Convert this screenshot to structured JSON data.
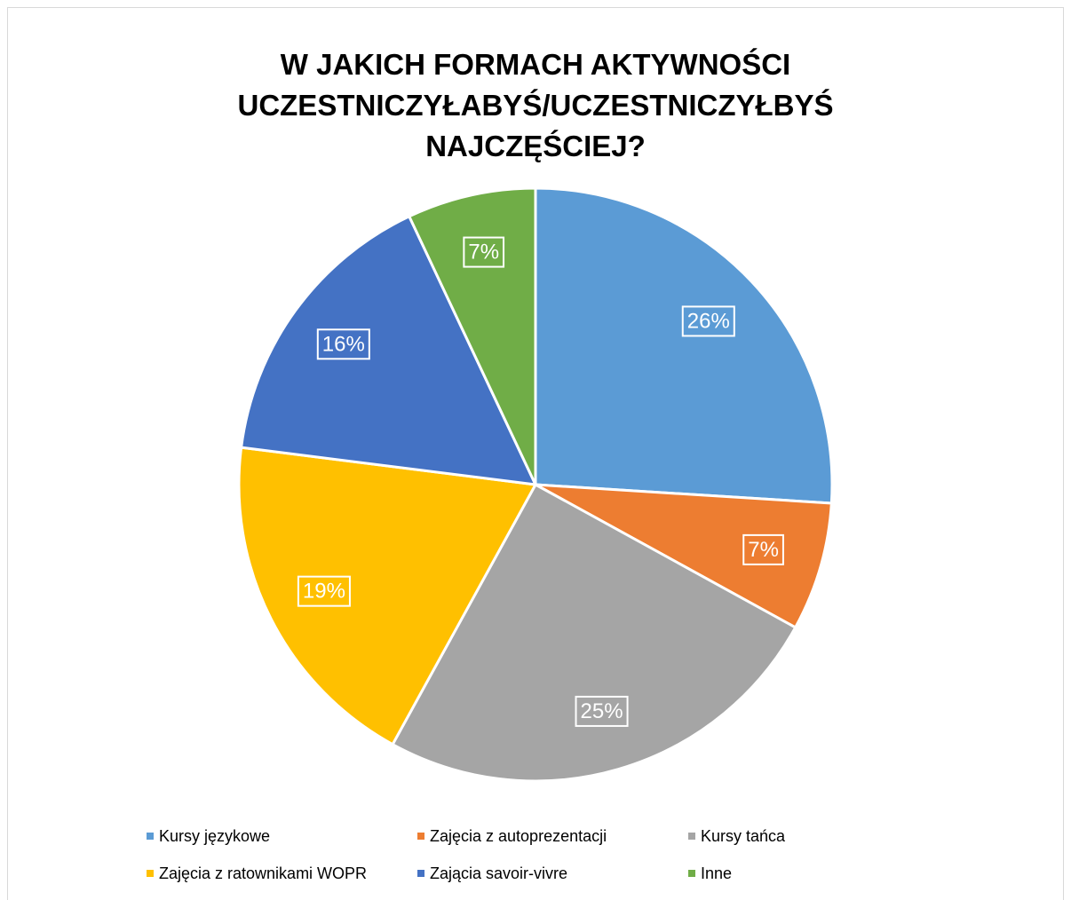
{
  "chart_data": {
    "type": "pie",
    "title": "W JAKICH FORMACH AKTYWNOŚCI UCZESTNICZYŁABYŚ/UCZESTNICZYŁBYŚ NAJCZĘŚCIEJ?",
    "categories": [
      "Kursy językowe",
      "Zajęcia z autoprezentacji",
      "Kursy tańca",
      "Zajęcia z ratownikami WOPR",
      "Zającia savoir-vivre",
      "Inne"
    ],
    "values": [
      26,
      7,
      25,
      19,
      16,
      7
    ],
    "value_labels": [
      "26%",
      "7%",
      "25%",
      "19%",
      "16%",
      "7%"
    ],
    "colors": [
      "#5b9bd5",
      "#ed7d31",
      "#a5a5a5",
      "#ffc000",
      "#4472c4",
      "#70ad47"
    ],
    "legend": "bottom"
  }
}
